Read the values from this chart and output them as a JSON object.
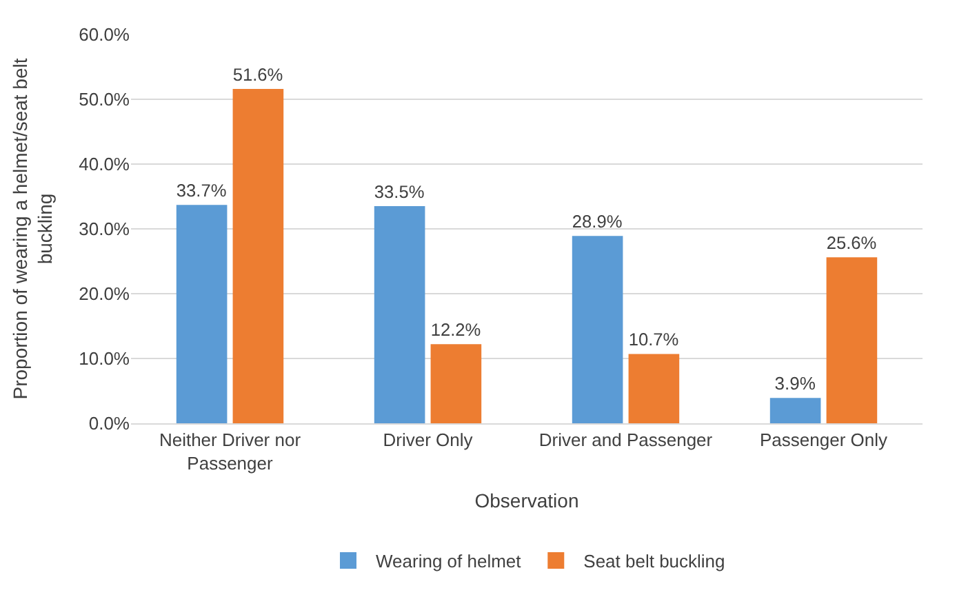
{
  "chart_data": {
    "type": "bar",
    "categories": [
      "Neither Driver nor Passenger",
      "Driver Only",
      "Driver and Passenger",
      "Passenger Only"
    ],
    "series": [
      {
        "name": "Wearing of helmet",
        "color": "#5b9bd5",
        "values": [
          33.7,
          33.5,
          28.9,
          3.9
        ],
        "value_labels": [
          "33.7%",
          "33.5%",
          "28.9%",
          "3.9%"
        ]
      },
      {
        "name": "Seat belt buckling",
        "color": "#ed7d31",
        "values": [
          51.6,
          12.2,
          10.7,
          25.6
        ],
        "value_labels": [
          "51.6%",
          "12.2%",
          "10.7%",
          "25.6%"
        ]
      }
    ],
    "xlabel": "Observation",
    "ylabel": "Proportion of wearing a helmet/seat belt buckling",
    "ylim": [
      0,
      60
    ],
    "yticks": [
      {
        "value": 0,
        "label": "0.0%"
      },
      {
        "value": 10,
        "label": "10.0%"
      },
      {
        "value": 20,
        "label": "20.0%"
      },
      {
        "value": 30,
        "label": "30.0%"
      },
      {
        "value": 40,
        "label": "40.0%"
      },
      {
        "value": 50,
        "label": "50.0%"
      },
      {
        "value": 60,
        "label": "60.0%"
      }
    ],
    "grid": "y",
    "legend": "bottom"
  }
}
